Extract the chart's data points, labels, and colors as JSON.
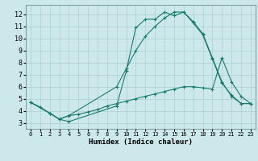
{
  "title": "",
  "xlabel": "Humidex (Indice chaleur)",
  "background_color": "#cce8ea",
  "grid_color": "#aacfd2",
  "line_color": "#1a7a6e",
  "xlim": [
    -0.5,
    23.5
  ],
  "ylim": [
    2.5,
    12.8
  ],
  "xticks": [
    0,
    1,
    2,
    3,
    4,
    5,
    6,
    7,
    8,
    9,
    10,
    11,
    12,
    13,
    14,
    15,
    16,
    17,
    18,
    19,
    20,
    21,
    22,
    23
  ],
  "yticks": [
    3,
    4,
    5,
    6,
    7,
    8,
    9,
    10,
    11,
    12
  ],
  "line1_x": [
    0,
    1,
    2,
    3,
    4,
    9,
    10,
    11,
    12,
    13,
    14,
    15,
    16,
    17,
    18,
    19,
    20,
    21,
    22,
    23
  ],
  "line1_y": [
    4.7,
    4.3,
    3.8,
    3.3,
    3.1,
    4.4,
    7.3,
    10.9,
    11.6,
    11.6,
    12.2,
    11.9,
    12.2,
    11.4,
    10.4,
    8.4,
    6.4,
    5.2,
    4.6,
    4.6
  ],
  "line2_x": [
    0,
    2,
    3,
    4,
    9,
    10,
    11,
    12,
    13,
    14,
    15,
    16,
    17,
    18,
    19,
    20,
    21,
    22,
    23
  ],
  "line2_y": [
    4.7,
    3.8,
    3.3,
    3.6,
    6.0,
    7.5,
    9.0,
    10.2,
    11.0,
    11.7,
    12.2,
    12.2,
    11.3,
    10.3,
    8.3,
    6.3,
    5.3,
    4.6,
    4.6
  ],
  "line3_x": [
    0,
    2,
    3,
    4,
    5,
    6,
    7,
    8,
    9,
    10,
    11,
    12,
    13,
    14,
    15,
    16,
    17,
    18,
    19,
    20,
    21,
    22,
    23
  ],
  "line3_y": [
    4.7,
    3.8,
    3.3,
    3.6,
    3.7,
    3.9,
    4.1,
    4.4,
    4.6,
    4.8,
    5.0,
    5.2,
    5.4,
    5.6,
    5.8,
    6.0,
    6.0,
    5.9,
    5.8,
    8.4,
    6.4,
    5.2,
    4.6
  ],
  "font_family": "monospace"
}
